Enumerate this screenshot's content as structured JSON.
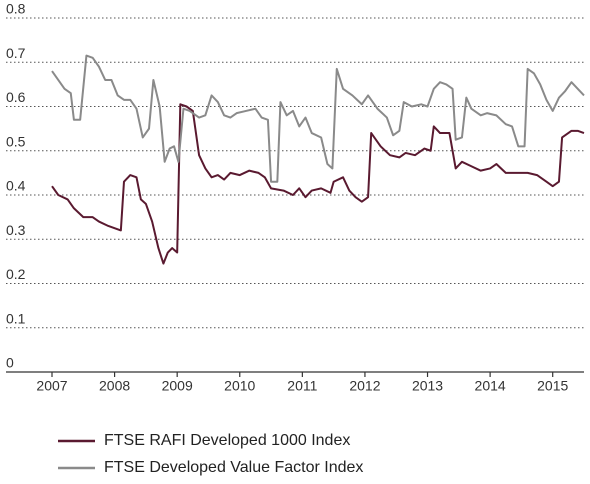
{
  "chart_data": {
    "type": "line",
    "xlim": [
      2007,
      2015.5
    ],
    "ylim": [
      0,
      0.8
    ],
    "xticks": [
      2007,
      2008,
      2009,
      2010,
      2011,
      2012,
      2013,
      2014,
      2015
    ],
    "yticks": [
      0,
      0.1,
      0.2,
      0.3,
      0.4,
      0.5,
      0.6,
      0.7,
      0.8
    ],
    "grid": true,
    "legend": "bottom",
    "series": [
      {
        "name": "FTSE RAFI Developed 1000 Index",
        "color": "#5a1a30",
        "x": [
          2007.0,
          2007.1,
          2007.25,
          2007.35,
          2007.5,
          2007.65,
          2007.75,
          2007.9,
          2008.0,
          2008.1,
          2008.15,
          2008.25,
          2008.35,
          2008.42,
          2008.5,
          2008.6,
          2008.7,
          2008.78,
          2008.85,
          2008.92,
          2009.0,
          2009.05,
          2009.15,
          2009.25,
          2009.35,
          2009.45,
          2009.55,
          2009.65,
          2009.75,
          2009.85,
          2010.0,
          2010.15,
          2010.3,
          2010.4,
          2010.5,
          2010.7,
          2010.85,
          2010.95,
          2011.05,
          2011.15,
          2011.3,
          2011.45,
          2011.5,
          2011.65,
          2011.75,
          2011.85,
          2011.95,
          2012.05,
          2012.1,
          2012.25,
          2012.4,
          2012.55,
          2012.65,
          2012.8,
          2012.95,
          2013.05,
          2013.1,
          2013.2,
          2013.35,
          2013.45,
          2013.55,
          2013.7,
          2013.85,
          2014.0,
          2014.1,
          2014.25,
          2014.4,
          2014.6,
          2014.75,
          2014.9,
          2015.0,
          2015.1,
          2015.15,
          2015.3,
          2015.4,
          2015.5
        ],
        "values": [
          0.42,
          0.4,
          0.39,
          0.37,
          0.35,
          0.35,
          0.34,
          0.33,
          0.325,
          0.32,
          0.43,
          0.445,
          0.44,
          0.39,
          0.38,
          0.34,
          0.28,
          0.245,
          0.27,
          0.28,
          0.27,
          0.605,
          0.6,
          0.59,
          0.49,
          0.46,
          0.44,
          0.445,
          0.435,
          0.45,
          0.445,
          0.455,
          0.45,
          0.44,
          0.415,
          0.41,
          0.4,
          0.415,
          0.395,
          0.41,
          0.415,
          0.405,
          0.43,
          0.44,
          0.41,
          0.395,
          0.385,
          0.395,
          0.54,
          0.51,
          0.49,
          0.485,
          0.495,
          0.49,
          0.505,
          0.5,
          0.555,
          0.54,
          0.54,
          0.46,
          0.475,
          0.465,
          0.455,
          0.46,
          0.47,
          0.45,
          0.45,
          0.45,
          0.445,
          0.43,
          0.42,
          0.43,
          0.53,
          0.545,
          0.545,
          0.54
        ]
      },
      {
        "name": "FTSE Developed Value Factor Index",
        "color": "#8a8a8a",
        "x": [
          2007.0,
          2007.1,
          2007.2,
          2007.3,
          2007.35,
          2007.45,
          2007.55,
          2007.65,
          2007.75,
          2007.85,
          2007.95,
          2008.05,
          2008.15,
          2008.25,
          2008.35,
          2008.45,
          2008.55,
          2008.62,
          2008.72,
          2008.8,
          2008.88,
          2008.95,
          2009.02,
          2009.1,
          2009.2,
          2009.35,
          2009.45,
          2009.55,
          2009.65,
          2009.75,
          2009.85,
          2009.95,
          2010.1,
          2010.25,
          2010.35,
          2010.45,
          2010.5,
          2010.6,
          2010.65,
          2010.75,
          2010.85,
          2010.95,
          2011.05,
          2011.15,
          2011.3,
          2011.4,
          2011.48,
          2011.55,
          2011.65,
          2011.8,
          2011.95,
          2012.05,
          2012.2,
          2012.35,
          2012.45,
          2012.55,
          2012.62,
          2012.75,
          2012.9,
          2013.0,
          2013.1,
          2013.2,
          2013.3,
          2013.4,
          2013.45,
          2013.55,
          2013.62,
          2013.7,
          2013.85,
          2013.95,
          2014.1,
          2014.25,
          2014.35,
          2014.45,
          2014.55,
          2014.6,
          2014.7,
          2014.8,
          2014.9,
          2015.0,
          2015.1,
          2015.2,
          2015.3,
          2015.4,
          2015.5
        ],
        "values": [
          0.68,
          0.66,
          0.64,
          0.63,
          0.57,
          0.57,
          0.715,
          0.71,
          0.69,
          0.66,
          0.66,
          0.625,
          0.615,
          0.615,
          0.595,
          0.53,
          0.55,
          0.66,
          0.6,
          0.475,
          0.505,
          0.51,
          0.475,
          0.595,
          0.59,
          0.575,
          0.58,
          0.625,
          0.61,
          0.58,
          0.575,
          0.585,
          0.59,
          0.595,
          0.575,
          0.57,
          0.43,
          0.43,
          0.61,
          0.58,
          0.59,
          0.555,
          0.575,
          0.54,
          0.53,
          0.47,
          0.46,
          0.685,
          0.64,
          0.625,
          0.605,
          0.625,
          0.595,
          0.575,
          0.535,
          0.545,
          0.61,
          0.6,
          0.605,
          0.6,
          0.64,
          0.655,
          0.65,
          0.64,
          0.525,
          0.53,
          0.62,
          0.595,
          0.58,
          0.585,
          0.58,
          0.56,
          0.555,
          0.51,
          0.51,
          0.685,
          0.675,
          0.65,
          0.615,
          0.59,
          0.62,
          0.635,
          0.655,
          0.64,
          0.625
        ]
      }
    ]
  }
}
